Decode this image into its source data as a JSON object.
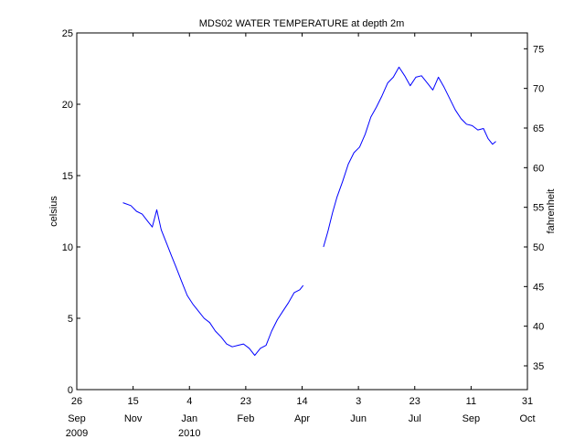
{
  "chart_data": {
    "type": "line",
    "title": "MDS02 WATER TEMPERATURE at depth 2m",
    "ylabel": "celsius",
    "y2label": "fahrenheit",
    "ylim": [
      0,
      25
    ],
    "y2lim": [
      32,
      77
    ],
    "grid": false,
    "x_ticks": [
      {
        "x": "2009-09-26",
        "day": "26",
        "month": "Sep",
        "year": "2009"
      },
      {
        "x": "2009-11-15",
        "day": "15",
        "month": "Nov",
        "year": ""
      },
      {
        "x": "2010-01-04",
        "day": "4",
        "month": "Jan",
        "year": "2010"
      },
      {
        "x": "2010-02-23",
        "day": "23",
        "month": "Feb",
        "year": ""
      },
      {
        "x": "2010-04-14",
        "day": "14",
        "month": "Apr",
        "year": ""
      },
      {
        "x": "2010-06-03",
        "day": "3",
        "month": "Jun",
        "year": ""
      },
      {
        "x": "2010-07-23",
        "day": "23",
        "month": "Jul",
        "year": ""
      },
      {
        "x": "2010-09-11",
        "day": "11",
        "month": "Sep",
        "year": ""
      },
      {
        "x": "2010-10-31",
        "day": "31",
        "month": "Oct",
        "year": ""
      }
    ],
    "y_ticks": [
      0,
      5,
      10,
      15,
      20,
      25
    ],
    "y2_ticks": [
      35,
      40,
      45,
      50,
      55,
      60,
      65,
      70,
      75
    ],
    "series": [
      {
        "color": "#0000ff",
        "segments": [
          [
            [
              "2009-11-06",
              13.1
            ],
            [
              "2009-11-13",
              12.9
            ],
            [
              "2009-11-18",
              12.5
            ],
            [
              "2009-11-23",
              12.3
            ],
            [
              "2009-11-28",
              11.8
            ],
            [
              "2009-12-02",
              11.4
            ],
            [
              "2009-12-06",
              12.6
            ],
            [
              "2009-12-10",
              11.2
            ],
            [
              "2009-12-15",
              10.2
            ],
            [
              "2009-12-19",
              9.4
            ],
            [
              "2009-12-23",
              8.6
            ],
            [
              "2009-12-28",
              7.6
            ],
            [
              "2010-01-02",
              6.6
            ],
            [
              "2010-01-07",
              6.0
            ],
            [
              "2010-01-12",
              5.5
            ],
            [
              "2010-01-17",
              5.0
            ],
            [
              "2010-01-22",
              4.7
            ],
            [
              "2010-01-27",
              4.1
            ],
            [
              "2010-02-01",
              3.7
            ],
            [
              "2010-02-06",
              3.2
            ],
            [
              "2010-02-11",
              3.0
            ],
            [
              "2010-02-16",
              3.1
            ],
            [
              "2010-02-21",
              3.2
            ],
            [
              "2010-02-26",
              2.9
            ],
            [
              "2010-03-03",
              2.4
            ],
            [
              "2010-03-08",
              2.9
            ],
            [
              "2010-03-13",
              3.1
            ],
            [
              "2010-03-18",
              4.1
            ],
            [
              "2010-03-23",
              4.9
            ],
            [
              "2010-03-28",
              5.5
            ],
            [
              "2010-04-02",
              6.1
            ],
            [
              "2010-04-07",
              6.8
            ],
            [
              "2010-04-12",
              7.0
            ],
            [
              "2010-04-15",
              7.3
            ]
          ],
          [
            [
              "2010-05-03",
              10.0
            ],
            [
              "2010-05-07",
              11.1
            ],
            [
              "2010-05-11",
              12.4
            ],
            [
              "2010-05-15",
              13.5
            ],
            [
              "2010-05-20",
              14.6
            ],
            [
              "2010-05-25",
              15.8
            ],
            [
              "2010-05-30",
              16.6
            ],
            [
              "2010-06-04",
              17.0
            ],
            [
              "2010-06-09",
              17.9
            ],
            [
              "2010-06-14",
              19.1
            ],
            [
              "2010-06-19",
              19.8
            ],
            [
              "2010-06-24",
              20.6
            ],
            [
              "2010-06-29",
              21.5
            ],
            [
              "2010-07-04",
              21.9
            ],
            [
              "2010-07-09",
              22.6
            ],
            [
              "2010-07-14",
              22.0
            ],
            [
              "2010-07-19",
              21.3
            ],
            [
              "2010-07-24",
              21.9
            ],
            [
              "2010-07-29",
              22.0
            ],
            [
              "2010-08-03",
              21.5
            ],
            [
              "2010-08-08",
              21.0
            ],
            [
              "2010-08-13",
              21.9
            ],
            [
              "2010-08-18",
              21.2
            ],
            [
              "2010-08-23",
              20.4
            ],
            [
              "2010-08-28",
              19.6
            ],
            [
              "2010-09-02",
              19.0
            ],
            [
              "2010-09-07",
              18.6
            ],
            [
              "2010-09-12",
              18.5
            ],
            [
              "2010-09-17",
              18.2
            ],
            [
              "2010-09-22",
              18.3
            ],
            [
              "2010-09-26",
              17.6
            ],
            [
              "2010-09-30",
              17.2
            ],
            [
              "2010-10-03",
              17.4
            ]
          ]
        ]
      }
    ]
  }
}
